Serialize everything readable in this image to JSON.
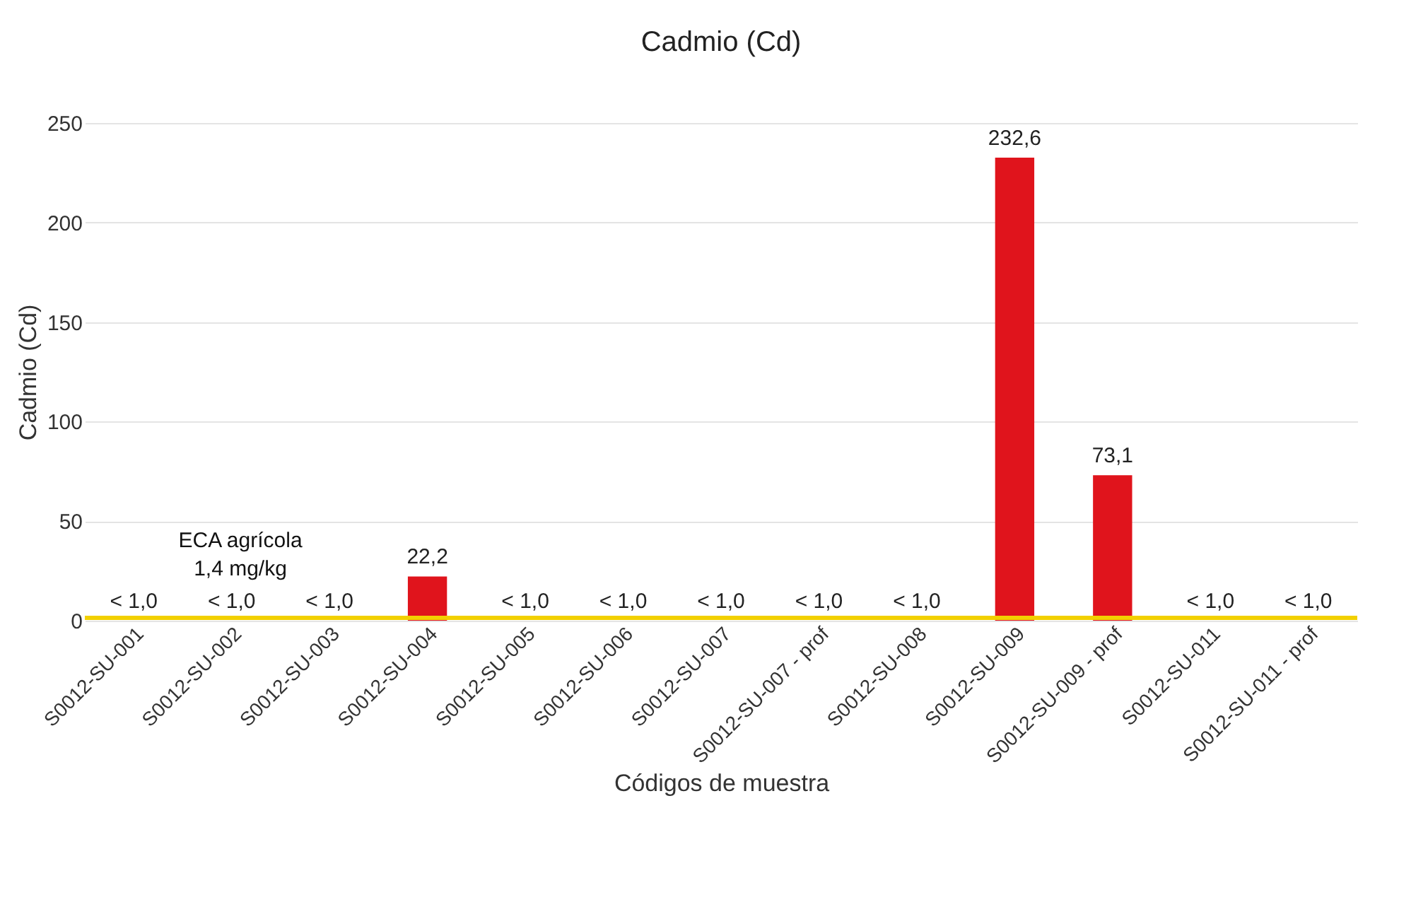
{
  "chart_data": {
    "type": "bar",
    "title": "Cadmio (Cd)",
    "xlabel": "Códigos de muestra",
    "ylabel": "Cadmio (Cd)",
    "categories": [
      "S0012-SU-001",
      "S0012-SU-002",
      "S0012-SU-003",
      "S0012-SU-004",
      "S0012-SU-005",
      "S0012-SU-006",
      "S0012-SU-007",
      "S0012-SU-007 - prof",
      "S0012-SU-008",
      "S0012-SU-009",
      "S0012-SU-009 - prof",
      "S0012-SU-011",
      "S0012-SU-011 - prof"
    ],
    "values": [
      null,
      null,
      null,
      22.2,
      null,
      null,
      null,
      null,
      null,
      232.6,
      73.1,
      null,
      null
    ],
    "value_labels": [
      "< 1,0",
      "< 1,0",
      "< 1,0",
      "22,2",
      "< 1,0",
      "< 1,0",
      "< 1,0",
      "< 1,0",
      "< 1,0",
      "232,6",
      "73,1",
      "< 1,0",
      "< 1,0"
    ],
    "color": "#e0141c",
    "ylim": [
      0,
      250
    ],
    "yticks": [
      0,
      50,
      100,
      150,
      200,
      250
    ],
    "grid": "y",
    "ref_lines": [
      {
        "axis": "y",
        "value": 1.4,
        "label": "ECA agrícola\n1,4 mg/kg",
        "color": "#f2d000"
      }
    ]
  }
}
